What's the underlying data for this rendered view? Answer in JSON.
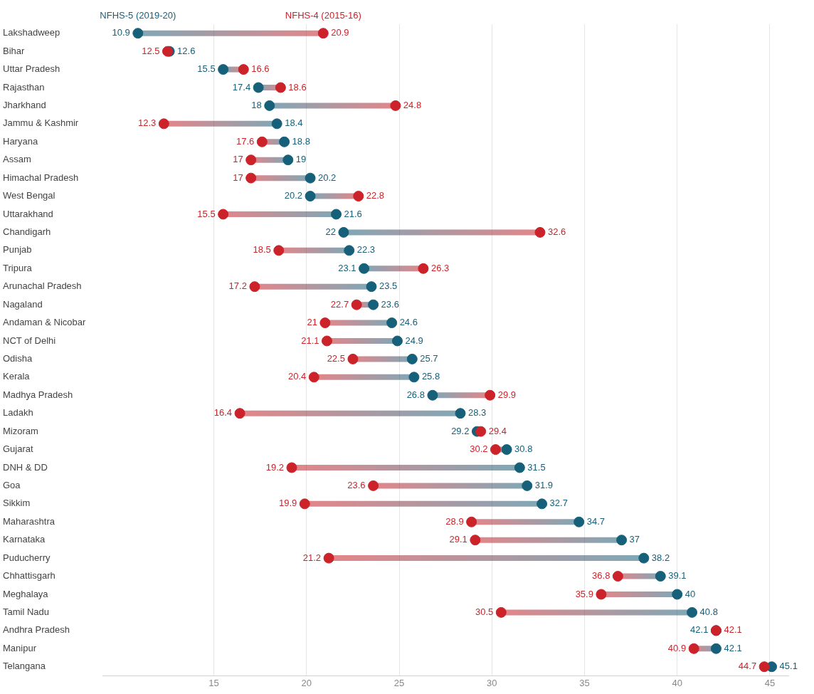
{
  "chart_data": {
    "type": "scatter",
    "orientation": "horizontal",
    "categories": [
      "Lakshadweep",
      "Bihar",
      "Uttar Pradesh",
      "Rajasthan",
      "Jharkhand",
      "Jammu & Kashmir",
      "Haryana",
      "Assam",
      "Himachal Pradesh",
      "West Bengal",
      "Uttarakhand",
      "Chandigarh",
      "Punjab",
      "Tripura",
      "Arunachal Pradesh",
      "Nagaland",
      "Andaman & Nicobar",
      "NCT of Delhi",
      "Odisha",
      "Kerala",
      "Madhya Pradesh",
      "Ladakh",
      "Mizoram",
      "Gujarat",
      "DNH & DD",
      "Goa",
      "Sikkim",
      "Maharashtra",
      "Karnataka",
      "Puducherry",
      "Chhattisgarh",
      "Meghalaya",
      "Tamil Nadu",
      "Andhra Pradesh",
      "Manipur",
      "Telangana"
    ],
    "series": [
      {
        "name": "NFHS-5 (2019-20)",
        "color": "#17607a",
        "values": [
          10.9,
          12.6,
          15.5,
          17.4,
          18,
          18.4,
          18.8,
          19,
          20.2,
          20.2,
          21.6,
          22,
          22.3,
          23.1,
          23.5,
          23.6,
          24.6,
          24.9,
          25.7,
          25.8,
          26.8,
          28.3,
          29.2,
          30.8,
          31.5,
          31.9,
          32.7,
          34.7,
          37,
          38.2,
          39.1,
          40,
          40.8,
          42.1,
          42.1,
          45.1
        ]
      },
      {
        "name": "NFHS-4 (2015-16)",
        "color": "#cc2229",
        "values": [
          20.9,
          12.5,
          16.6,
          18.6,
          24.8,
          12.3,
          17.6,
          17,
          17,
          22.8,
          15.5,
          32.6,
          18.5,
          26.3,
          17.2,
          22.7,
          21,
          21.1,
          22.5,
          20.4,
          29.9,
          16.4,
          29.4,
          30.2,
          19.2,
          23.6,
          19.9,
          28.9,
          29.1,
          21.2,
          36.8,
          35.9,
          30.5,
          42.1,
          40.9,
          44.7
        ]
      }
    ],
    "xlim": [
      9,
      46
    ],
    "xticks": [
      15,
      20,
      25,
      30,
      35,
      40,
      45
    ],
    "grid": "x",
    "legend": false,
    "marker": "circle",
    "data_labels": true
  }
}
